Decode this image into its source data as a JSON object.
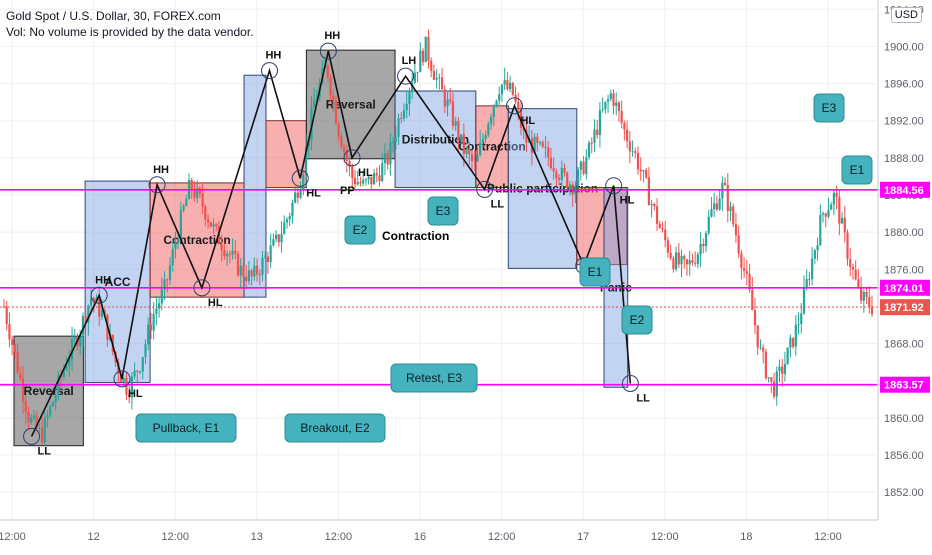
{
  "header": {
    "title": "Gold Spot / U.S. Dollar, 30, FOREX.com",
    "volume_note": "Vol: No volume is provided by the data vendor."
  },
  "currency_button": "USD",
  "chart_data": {
    "type": "candlestick",
    "instrument": "Gold Spot / U.S. Dollar",
    "timeframe": "30",
    "source": "FOREX.com",
    "ylim": [
      1849,
      1905
    ],
    "y_ticks": [
      1852,
      1856,
      1860,
      1864,
      1868,
      1872,
      1876,
      1880,
      1884,
      1888,
      1892,
      1896,
      1900,
      1904
    ],
    "x_ticks": [
      "12:00",
      "12",
      "12:00",
      "13",
      "12:00",
      "16",
      "12:00",
      "17",
      "12:00",
      "18",
      "12:00"
    ],
    "horizontal_levels": [
      {
        "price": 1884.56,
        "label": "1884.56",
        "color": "#ff00ff"
      },
      {
        "price": 1874.01,
        "label": "1874.01",
        "color": "#ff00ff"
      },
      {
        "price": 1863.57,
        "label": "1863.57",
        "color": "#ff00ff"
      }
    ],
    "last_price": {
      "value": 1871.92,
      "label": "1871.92",
      "color": "#ef5350"
    },
    "price_path": [
      1872,
      1866,
      1860,
      1858,
      1862,
      1866,
      1869,
      1873,
      1871,
      1866,
      1863,
      1866,
      1871,
      1874,
      1880,
      1885,
      1883,
      1880,
      1878,
      1876,
      1875,
      1877,
      1879,
      1882,
      1886,
      1894,
      1898,
      1891,
      1886,
      1885,
      1886,
      1888,
      1893,
      1897,
      1900,
      1896,
      1893,
      1889,
      1887,
      1892,
      1896,
      1895,
      1890,
      1889,
      1888,
      1886,
      1885,
      1888,
      1892,
      1895,
      1891,
      1888,
      1884,
      1880,
      1877,
      1876,
      1878,
      1882,
      1885,
      1880,
      1874,
      1867,
      1863,
      1866,
      1870,
      1876,
      1882,
      1884,
      1878,
      1873,
      1872
    ],
    "zones": [
      {
        "label": "Reversal",
        "color": "gray",
        "x0": 0.0,
        "x1": 0.079,
        "y0": 1857.0,
        "y1": 1868.8
      },
      {
        "label": "ACC",
        "color": "blue",
        "x0": 0.081,
        "x1": 0.155,
        "y0": 1863.8,
        "y1": 1885.5
      },
      {
        "label": "Contraction",
        "color": "red",
        "x0": 0.155,
        "x1": 0.262,
        "y0": 1873.0,
        "y1": 1885.3
      },
      {
        "label": "",
        "color": "blue",
        "x0": 0.262,
        "x1": 0.287,
        "y0": 1873.0,
        "y1": 1896.9
      },
      {
        "label": "",
        "color": "red",
        "x0": 0.287,
        "x1": 0.333,
        "y0": 1884.8,
        "y1": 1892.0
      },
      {
        "label": "Reversal",
        "color": "gray",
        "x0": 0.333,
        "x1": 0.434,
        "y0": 1887.9,
        "y1": 1899.6
      },
      {
        "label": "Distribution",
        "color": "blue",
        "x0": 0.434,
        "x1": 0.526,
        "y0": 1884.8,
        "y1": 1895.2
      },
      {
        "label": "Contraction",
        "color": "red",
        "x0": 0.526,
        "x1": 0.563,
        "y0": 1884.8,
        "y1": 1893.6
      },
      {
        "label": "Public participation",
        "color": "blue",
        "x0": 0.563,
        "x1": 0.641,
        "y0": 1876.1,
        "y1": 1893.3
      },
      {
        "label": "",
        "color": "red",
        "x0": 0.641,
        "x1": 0.698,
        "y0": 1876.5,
        "y1": 1884.8
      },
      {
        "label": "Panic",
        "color": "blue",
        "x0": 0.672,
        "x1": 0.699,
        "y0": 1863.3,
        "y1": 1884.8
      }
    ],
    "swing_labels": [
      {
        "label": "LL",
        "pos": 0.02,
        "price": 1858.0
      },
      {
        "label": "HH",
        "pos": 0.097,
        "price": 1873.2
      },
      {
        "label": "HL",
        "pos": 0.123,
        "price": 1864.2
      },
      {
        "label": "HH",
        "pos": 0.163,
        "price": 1885.1
      },
      {
        "label": "HL",
        "pos": 0.214,
        "price": 1874.0
      },
      {
        "label": "HH",
        "pos": 0.291,
        "price": 1897.4
      },
      {
        "label": "HL",
        "pos": 0.326,
        "price": 1885.8
      },
      {
        "label": "HH",
        "pos": 0.358,
        "price": 1899.5
      },
      {
        "label": "HL",
        "pos": 0.385,
        "price": 1888.0
      },
      {
        "label": "LH",
        "pos": 0.446,
        "price": 1896.8
      },
      {
        "label": "LL",
        "pos": 0.536,
        "price": 1884.6
      },
      {
        "label": "HL",
        "pos": 0.57,
        "price": 1893.6
      },
      {
        "label": "LL",
        "pos": 0.649,
        "price": 1876.4
      },
      {
        "label": "HL",
        "pos": 0.683,
        "price": 1885.0
      },
      {
        "label": "LL",
        "pos": 0.702,
        "price": 1863.7
      }
    ],
    "callouts": [
      "Pullback, E1",
      "Breakout, E2",
      "Retest, E3",
      "E2",
      "E3",
      "E1",
      "E2",
      "E3",
      "E1"
    ],
    "zone_text_extra": [
      "PP",
      "Contraction"
    ]
  }
}
